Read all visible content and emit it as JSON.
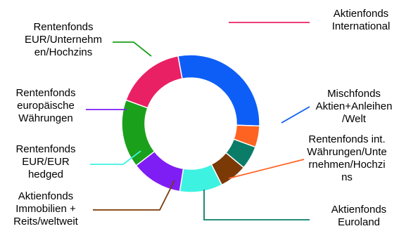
{
  "chart_data": {
    "type": "pie",
    "donut": true,
    "legend": "none",
    "categories": [
      "Aktienfonds\nInternational",
      "Mischfonds\nAktien+Anleihen\n/Welt",
      "Rentenfonds int.\nWährungen/Unte\nrnehmen/Hochzi\nns",
      "Aktienfonds\nEuroland",
      "Aktienfonds\nImmobilien +\nReits/weltweit",
      "Rentenfonds\nEUR/EUR\nhedged",
      "Rentenfonds\neuropäische\nWährungen",
      "Rentenfonds\nEUR/Unternehm\nen/Hochzins"
    ],
    "values": [
      16.5,
      28.5,
      5,
      5.5,
      6.5,
      10,
      12,
      16
    ],
    "unit": "%",
    "colors": [
      "#ea2064",
      "#0d5ef6",
      "#ff6321",
      "#0b7c68",
      "#7b3906",
      "#3ef2e2",
      "#7f1df5",
      "#1ba01b"
    ]
  }
}
